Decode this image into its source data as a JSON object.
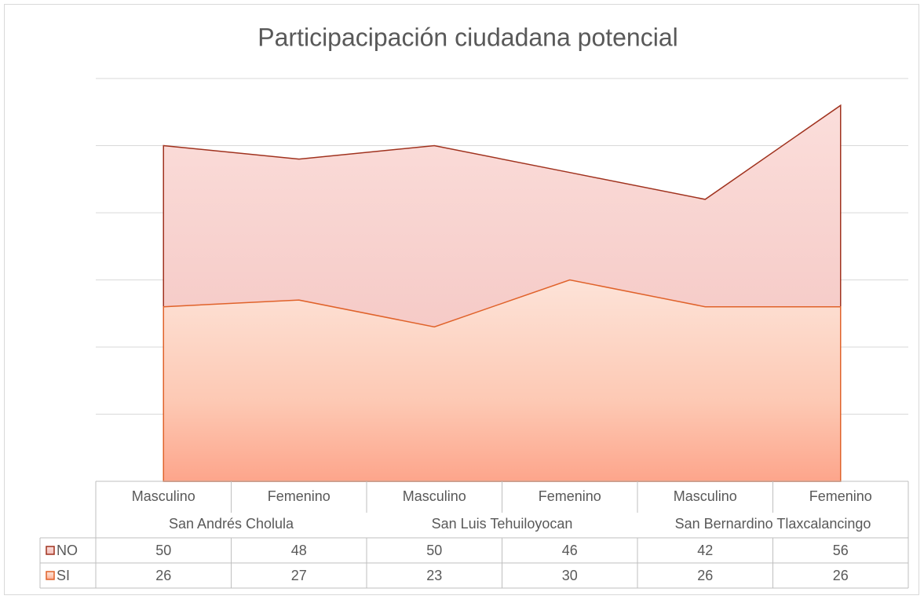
{
  "chart_data": {
    "type": "area",
    "title": "Participacipación ciudadana potencial",
    "categories": [
      "Masculino",
      "Femenino",
      "Masculino",
      "Femenino",
      "Masculino",
      "Femenino"
    ],
    "groups": [
      "San Andrés Cholula",
      "San Luis Tehuiloyocan",
      "San Bernardino Tlaxcalancingo"
    ],
    "series": [
      {
        "name": "NO",
        "color": "#a0321e",
        "values": [
          50,
          48,
          50,
          46,
          42,
          56
        ]
      },
      {
        "name": "SI",
        "color": "#e0622a",
        "values": [
          26,
          27,
          23,
          30,
          26,
          26
        ]
      }
    ],
    "ylim": [
      0,
      60
    ],
    "yticks": [
      0,
      10,
      20,
      30,
      40,
      50,
      60
    ],
    "grid": true,
    "legend": "table"
  }
}
